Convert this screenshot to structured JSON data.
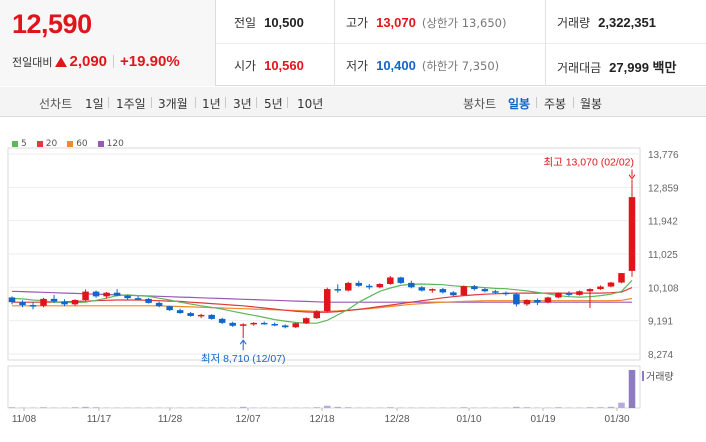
{
  "quote": {
    "price": "12,590",
    "change_label": "전일대비",
    "change_amount": "2,090",
    "change_pct": "+19.90%"
  },
  "stats": {
    "prev_close": {
      "label": "전일",
      "value": "10,500"
    },
    "open": {
      "label": "시가",
      "value": "10,560"
    },
    "high": {
      "label": "고가",
      "value": "13,070",
      "sub": "(상한가 13,650)"
    },
    "low": {
      "label": "저가",
      "value": "10,400",
      "sub": "(하한가 7,350)"
    },
    "volume": {
      "label": "거래량",
      "value": "2,322,351"
    },
    "turnover": {
      "label": "거래대금",
      "value": "27,999 백만"
    }
  },
  "toolbar": {
    "line_label": "선차트",
    "periods": [
      "1일",
      "1주일",
      "3개월",
      "1년",
      "3년",
      "5년",
      "10년"
    ],
    "candle_label": "봉차트",
    "candle_periods": [
      "일봉",
      "주봉",
      "월봉"
    ],
    "active_candle": "일봉"
  },
  "chart_data": {
    "type": "candlestick",
    "y_ticks": [
      "13,776",
      "12,859",
      "11,942",
      "11,025",
      "10,108",
      "9,191",
      "8,274"
    ],
    "ylim": [
      8274,
      13776
    ],
    "x_ticks": [
      "11/08",
      "11/17",
      "11/28",
      "12/07",
      "12/18",
      "12/28",
      "01/10",
      "01/19",
      "01/30"
    ],
    "legend": [
      {
        "name": "5",
        "color": "#5cb85c"
      },
      {
        "name": "20",
        "color": "#e0393e"
      },
      {
        "name": "60",
        "color": "#ee8a2a"
      },
      {
        "name": "120",
        "color": "#9b59b6"
      }
    ],
    "annotations": {
      "high": "최고 13,070 (02/02)",
      "low": "최저 8,710 (12/07)"
    },
    "volume_label": "거래량",
    "up_color": "#e0151b",
    "down_color": "#1166cc",
    "candles": [
      [
        9830,
        9860,
        9640,
        9700
      ],
      [
        9700,
        9750,
        9560,
        9620
      ],
      [
        9620,
        9700,
        9500,
        9600
      ],
      [
        9600,
        9820,
        9560,
        9790
      ],
      [
        9790,
        9900,
        9680,
        9720
      ],
      [
        9720,
        9780,
        9590,
        9640
      ],
      [
        9640,
        9780,
        9600,
        9760
      ],
      [
        9760,
        10050,
        9740,
        9990
      ],
      [
        9990,
        10020,
        9820,
        9860
      ],
      [
        9860,
        9980,
        9800,
        9960
      ],
      [
        9960,
        10060,
        9860,
        9880
      ],
      [
        9880,
        9900,
        9770,
        9810
      ],
      [
        9810,
        9860,
        9760,
        9790
      ],
      [
        9790,
        9820,
        9660,
        9680
      ],
      [
        9680,
        9720,
        9560,
        9590
      ],
      [
        9590,
        9600,
        9460,
        9480
      ],
      [
        9480,
        9520,
        9380,
        9400
      ],
      [
        9400,
        9430,
        9300,
        9320
      ],
      [
        9320,
        9380,
        9260,
        9350
      ],
      [
        9350,
        9370,
        9220,
        9240
      ],
      [
        9240,
        9270,
        9100,
        9130
      ],
      [
        9130,
        9160,
        9020,
        9050
      ],
      [
        9050,
        9120,
        8710,
        9090
      ],
      [
        9090,
        9150,
        9050,
        9130
      ],
      [
        9130,
        9170,
        9080,
        9100
      ],
      [
        9100,
        9140,
        9040,
        9060
      ],
      [
        9060,
        9090,
        8980,
        9010
      ],
      [
        9010,
        9140,
        8990,
        9120
      ],
      [
        9120,
        9280,
        9100,
        9260
      ],
      [
        9260,
        9480,
        9240,
        9450
      ],
      [
        9450,
        10100,
        9420,
        10060
      ],
      [
        10060,
        10190,
        9960,
        10020
      ],
      [
        10020,
        10260,
        10000,
        10230
      ],
      [
        10230,
        10290,
        10120,
        10150
      ],
      [
        10150,
        10200,
        10050,
        10110
      ],
      [
        10110,
        10220,
        10080,
        10200
      ],
      [
        10200,
        10420,
        10180,
        10380
      ],
      [
        10380,
        10400,
        10200,
        10230
      ],
      [
        10230,
        10290,
        10080,
        10110
      ],
      [
        10110,
        10140,
        9990,
        10020
      ],
      [
        10020,
        10080,
        9960,
        10060
      ],
      [
        10060,
        10090,
        9940,
        9970
      ],
      [
        9970,
        10000,
        9860,
        9890
      ],
      [
        9890,
        10160,
        9870,
        10140
      ],
      [
        10140,
        10170,
        10020,
        10060
      ],
      [
        10060,
        10090,
        9970,
        10000
      ],
      [
        10000,
        10040,
        9930,
        9960
      ],
      [
        9960,
        9990,
        9880,
        9920
      ],
      [
        9920,
        9950,
        9580,
        9640
      ],
      [
        9640,
        9780,
        9600,
        9760
      ],
      [
        9760,
        9800,
        9620,
        9690
      ],
      [
        9690,
        9850,
        9670,
        9830
      ],
      [
        9830,
        9970,
        9810,
        9950
      ],
      [
        9950,
        10000,
        9860,
        9900
      ],
      [
        9900,
        10020,
        9880,
        10000
      ],
      [
        10000,
        10080,
        9540,
        10060
      ],
      [
        10060,
        10160,
        10040,
        10130
      ],
      [
        10130,
        10260,
        10110,
        10240
      ],
      [
        10240,
        10500,
        10220,
        10500
      ],
      [
        10560,
        13070,
        10400,
        12590
      ]
    ],
    "volumes": [
      2,
      1,
      1,
      2,
      1,
      1,
      2,
      3,
      2,
      1,
      1,
      1,
      1,
      1,
      1,
      1,
      1,
      1,
      1,
      1,
      1,
      1,
      3,
      1,
      1,
      1,
      1,
      1,
      1,
      2,
      6,
      3,
      2,
      1,
      1,
      1,
      2,
      1,
      1,
      1,
      1,
      1,
      1,
      2,
      1,
      1,
      1,
      1,
      3,
      2,
      1,
      1,
      2,
      1,
      1,
      2,
      2,
      3,
      14,
      100
    ],
    "ma5": [
      9800,
      9790,
      9760,
      9740,
      9700,
      9690,
      9690,
      9700,
      9750,
      9810,
      9880,
      9900,
      9880,
      9860,
      9810,
      9760,
      9700,
      9650,
      9600,
      9560,
      9510,
      9450,
      9390,
      9340,
      9280,
      9220,
      9180,
      9140,
      9120,
      9120,
      9200,
      9350,
      9500,
      9700,
      9850,
      10000,
      10090,
      10160,
      10190,
      10200,
      10190,
      10180,
      10150,
      10130,
      10120,
      10100,
      10080,
      10070,
      10040,
      10010,
      9970,
      9930,
      9880,
      9850,
      9840,
      9850,
      9880,
      9920,
      10000,
      10300
    ],
    "ma20": [
      9700,
      9700,
      9700,
      9700,
      9700,
      9710,
      9720,
      9730,
      9740,
      9750,
      9760,
      9760,
      9760,
      9750,
      9740,
      9730,
      9720,
      9700,
      9680,
      9660,
      9640,
      9620,
      9600,
      9570,
      9540,
      9510,
      9480,
      9450,
      9430,
      9420,
      9420,
      9440,
      9470,
      9500,
      9540,
      9580,
      9620,
      9660,
      9700,
      9740,
      9780,
      9820,
      9850,
      9880,
      9900,
      9920,
      9930,
      9940,
      9950,
      9950,
      9950,
      9950,
      9950,
      9950,
      9950,
      9950,
      9950,
      9960,
      9980,
      10100
    ],
    "ma60": [
      9600,
      9600,
      9600,
      9600,
      9600,
      9600,
      9600,
      9600,
      9600,
      9600,
      9600,
      9600,
      9600,
      9600,
      9600,
      9590,
      9580,
      9570,
      9560,
      9550,
      9540,
      9530,
      9520,
      9510,
      9500,
      9490,
      9480,
      9470,
      9460,
      9450,
      9450,
      9460,
      9480,
      9500,
      9520,
      9550,
      9580,
      9610,
      9640,
      9660,
      9680,
      9700,
      9710,
      9720,
      9730,
      9740,
      9740,
      9740,
      9740,
      9740,
      9740,
      9740,
      9740,
      9740,
      9740,
      9740,
      9740,
      9740,
      9750,
      9800
    ],
    "ma120": [
      10000,
      9990,
      9980,
      9970,
      9960,
      9950,
      9940,
      9930,
      9920,
      9910,
      9900,
      9890,
      9880,
      9870,
      9860,
      9850,
      9840,
      9830,
      9820,
      9810,
      9800,
      9790,
      9780,
      9770,
      9760,
      9750,
      9740,
      9730,
      9720,
      9710,
      9700,
      9700,
      9700,
      9700,
      9700,
      9700,
      9700,
      9700,
      9700,
      9700,
      9700,
      9700,
      9700,
      9700,
      9700,
      9700,
      9700,
      9700,
      9700,
      9700,
      9700,
      9700,
      9700,
      9700,
      9700,
      9700,
      9700,
      9700,
      9700,
      9700
    ]
  }
}
